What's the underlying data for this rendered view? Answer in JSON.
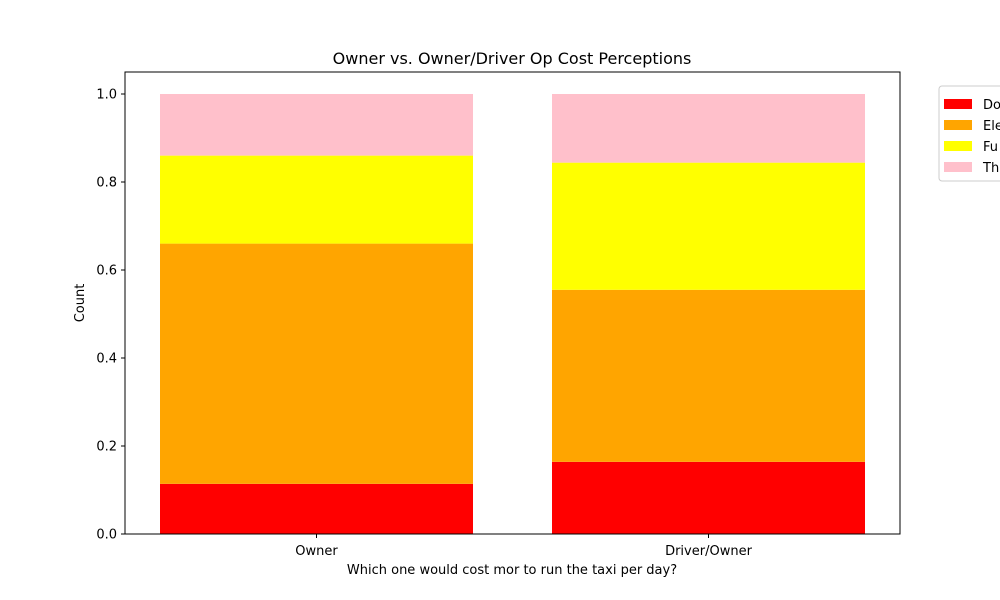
{
  "chart_data": {
    "type": "bar",
    "stacked": true,
    "title": "Owner vs. Owner/Driver Op Cost Perceptions",
    "xlabel": "Which one would cost mor to run the taxi per day?",
    "ylabel": "Count",
    "categories": [
      "Owner",
      "Driver/Owner"
    ],
    "ylim": [
      0,
      1.05
    ],
    "yticks": [
      "0.0",
      "0.2",
      "0.4",
      "0.6",
      "0.8",
      "1.0"
    ],
    "grid": false,
    "legend_position": "outside-right",
    "series": [
      {
        "name": "Do",
        "color": "#ff0000",
        "values": [
          0.114,
          0.164
        ]
      },
      {
        "name": "Ele",
        "color": "#ffa500",
        "values": [
          0.546,
          0.391
        ]
      },
      {
        "name": "Fu",
        "color": "#ffff00",
        "values": [
          0.2,
          0.289
        ]
      },
      {
        "name": "Th",
        "color": "#ffc0cb",
        "values": [
          0.14,
          0.156
        ]
      }
    ]
  }
}
